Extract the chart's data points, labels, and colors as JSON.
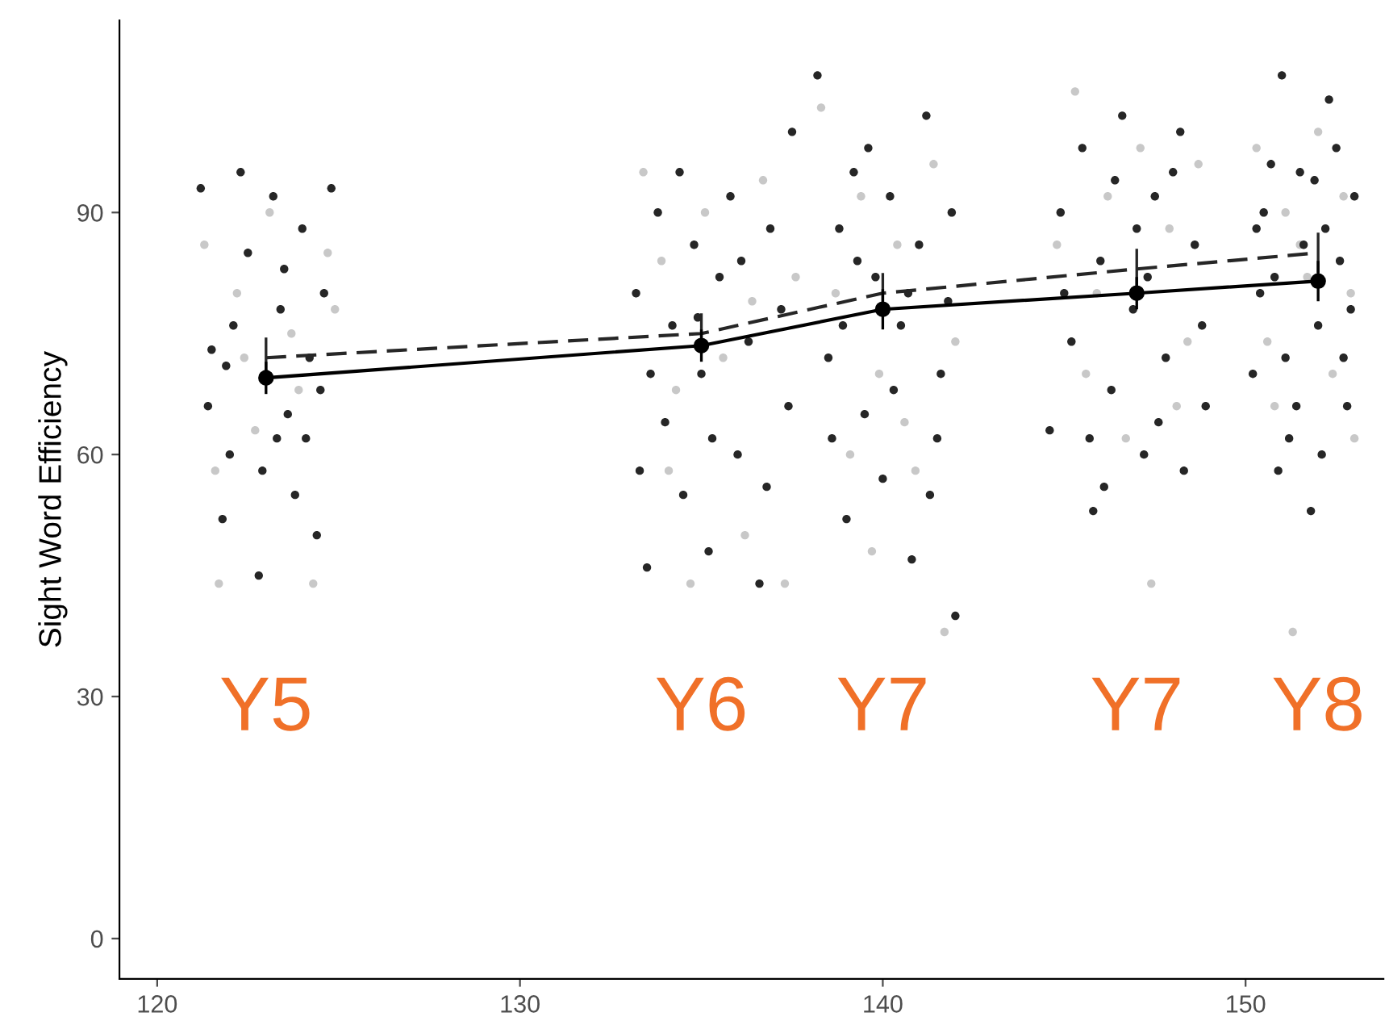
{
  "chart_data": {
    "type": "scatter",
    "ylabel": "Sight Word Efficiency",
    "xlim": [
      118.96,
      153.8
    ],
    "ylim": [
      -5,
      113.8
    ],
    "xticks": [
      120,
      130,
      140,
      150
    ],
    "yticks": [
      0,
      30,
      60,
      90
    ],
    "grid": false,
    "series": [
      {
        "color": "#c8c8c8",
        "marker": "circle",
        "x": [
          121.3,
          121.7,
          122.2,
          122.7,
          123.1,
          123.7,
          124.3,
          124.7,
          121.6,
          123.9,
          122.4,
          124.9,
          133.4,
          133.9,
          134.3,
          134.7,
          135.1,
          135.6,
          136.2,
          136.7,
          137.3,
          137.6,
          134.1,
          136.4,
          138.3,
          138.7,
          139.1,
          139.4,
          139.9,
          140.4,
          140.9,
          141.4,
          141.7,
          142.0,
          139.7,
          140.6,
          144.8,
          145.3,
          145.6,
          146.2,
          146.7,
          147.1,
          147.4,
          147.9,
          148.4,
          148.7,
          145.9,
          148.1,
          150.3,
          150.6,
          151.1,
          151.3,
          151.7,
          152.0,
          152.4,
          152.7,
          153.0,
          151.5,
          150.8,
          152.9
        ],
        "values": [
          86,
          44,
          80,
          63,
          90,
          75,
          44,
          85,
          58,
          68,
          72,
          78,
          95,
          84,
          68,
          44,
          90,
          72,
          50,
          94,
          44,
          82,
          58,
          79,
          103,
          80,
          60,
          92,
          70,
          86,
          58,
          96,
          38,
          74,
          48,
          64,
          86,
          105,
          70,
          92,
          62,
          98,
          44,
          88,
          74,
          96,
          80,
          66,
          98,
          74,
          90,
          38,
          82,
          100,
          70,
          92,
          62,
          86,
          66,
          80
        ]
      },
      {
        "color": "#262626",
        "marker": "circle",
        "x": [
          121.2,
          121.5,
          121.8,
          122.0,
          122.3,
          122.5,
          122.8,
          123.0,
          123.2,
          123.4,
          123.6,
          123.8,
          124.0,
          124.2,
          124.4,
          124.6,
          124.8,
          121.4,
          122.1,
          122.9,
          123.5,
          124.1,
          124.5,
          121.9,
          123.3,
          133.2,
          133.5,
          133.8,
          134.0,
          134.2,
          134.5,
          134.8,
          135.0,
          135.2,
          135.5,
          135.8,
          136.0,
          136.3,
          136.6,
          136.9,
          137.2,
          137.5,
          133.6,
          134.4,
          135.3,
          136.1,
          136.8,
          137.4,
          134.9,
          133.3,
          138.2,
          138.5,
          138.8,
          139.0,
          139.2,
          139.5,
          139.8,
          140.0,
          140.2,
          140.5,
          140.8,
          141.0,
          141.2,
          141.5,
          141.8,
          142.0,
          138.6,
          139.3,
          140.3,
          141.3,
          141.9,
          139.6,
          140.7,
          138.9,
          141.6,
          144.6,
          144.9,
          145.2,
          145.5,
          145.8,
          146.0,
          146.3,
          146.6,
          146.9,
          147.2,
          147.5,
          147.8,
          148.0,
          148.3,
          148.6,
          148.9,
          145.0,
          145.7,
          146.4,
          147.0,
          147.6,
          148.2,
          148.8,
          146.1,
          147.3,
          150.2,
          150.5,
          150.8,
          151.0,
          151.2,
          151.5,
          151.8,
          152.0,
          152.2,
          152.5,
          152.8,
          153.0,
          150.4,
          151.1,
          151.6,
          152.1,
          152.6,
          152.9,
          150.7,
          151.4,
          152.3,
          150.9,
          152.7,
          151.9,
          150.3
        ],
        "values": [
          93,
          73,
          52,
          60,
          95,
          85,
          45,
          70,
          92,
          78,
          65,
          55,
          88,
          72,
          50,
          80,
          93,
          66,
          76,
          58,
          83,
          62,
          68,
          71,
          62,
          80,
          46,
          90,
          64,
          76,
          55,
          86,
          70,
          48,
          82,
          92,
          60,
          74,
          44,
          88,
          78,
          100,
          70,
          95,
          62,
          84,
          56,
          66,
          77,
          58,
          107,
          72,
          88,
          52,
          95,
          65,
          82,
          57,
          92,
          76,
          47,
          86,
          102,
          62,
          79,
          40,
          62,
          84,
          68,
          55,
          90,
          98,
          80,
          76,
          70,
          63,
          90,
          74,
          98,
          53,
          84,
          68,
          102,
          78,
          60,
          92,
          72,
          95,
          58,
          86,
          66,
          80,
          62,
          94,
          88,
          64,
          100,
          76,
          56,
          82,
          70,
          90,
          82,
          107,
          62,
          95,
          53,
          76,
          88,
          98,
          66,
          92,
          80,
          72,
          86,
          60,
          84,
          78,
          96,
          66,
          104,
          58,
          72,
          94,
          88
        ]
      },
      {
        "type": "line",
        "color": "#262626",
        "line_style": "dashed",
        "marker": "none",
        "x": [
          123,
          135,
          140,
          147,
          152
        ],
        "values": [
          72,
          75,
          80,
          83,
          85
        ],
        "errors": [
          2.5,
          2.5,
          2.5,
          2.5,
          2.5
        ]
      },
      {
        "type": "line",
        "color": "#000000",
        "line_style": "solid",
        "marker": "circle",
        "x": [
          123,
          135,
          140,
          147,
          152
        ],
        "values": [
          69.5,
          73.5,
          78,
          80,
          81.5
        ],
        "errors": [
          2,
          2,
          2.5,
          2,
          2.5
        ]
      }
    ],
    "annotations": [
      "Y5",
      "Y6",
      "Y7",
      "Y7",
      "Y8"
    ]
  }
}
